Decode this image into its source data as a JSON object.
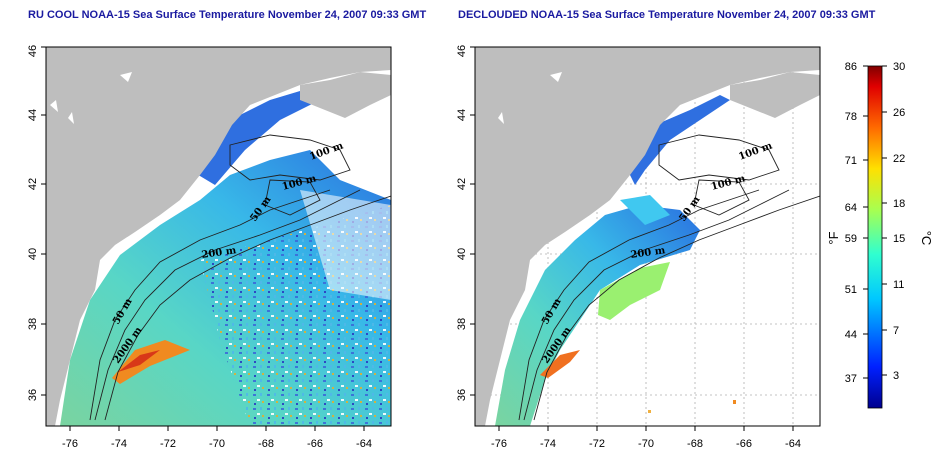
{
  "titles": {
    "left": "RU COOL NOAA-15 Sea Surface Temperature November 24, 2007 09:33 GMT",
    "right": "DECLOUDED NOAA-15 Sea Surface Temperature November 24, 2007 09:33 GMT"
  },
  "axes": {
    "lon_ticks": [
      "-76",
      "-74",
      "-72",
      "-70",
      "-68",
      "-66",
      "-64"
    ],
    "lat_ticks": [
      "36",
      "38",
      "40",
      "42",
      "44",
      "46"
    ]
  },
  "contour_labels": {
    "left": [
      "100 m",
      "100 m",
      "50 m",
      "200 m",
      "50 m",
      "2000 m"
    ],
    "right": [
      "100 m",
      "100 m",
      "50 m",
      "200 m",
      "50 m",
      "2000 m"
    ]
  },
  "colorbar": {
    "fahrenheit_label": "°F",
    "celsius_label": "°C",
    "fahrenheit_ticks": [
      "86",
      "78",
      "71",
      "64",
      "59",
      "51",
      "44",
      "37"
    ],
    "celsius_ticks": [
      "30",
      "26",
      "22",
      "18",
      "15",
      "11",
      "7",
      "3"
    ]
  },
  "colors": {
    "land": "#bebebe",
    "title": "#1a1aa0",
    "grid": "#b0b0b0"
  }
}
